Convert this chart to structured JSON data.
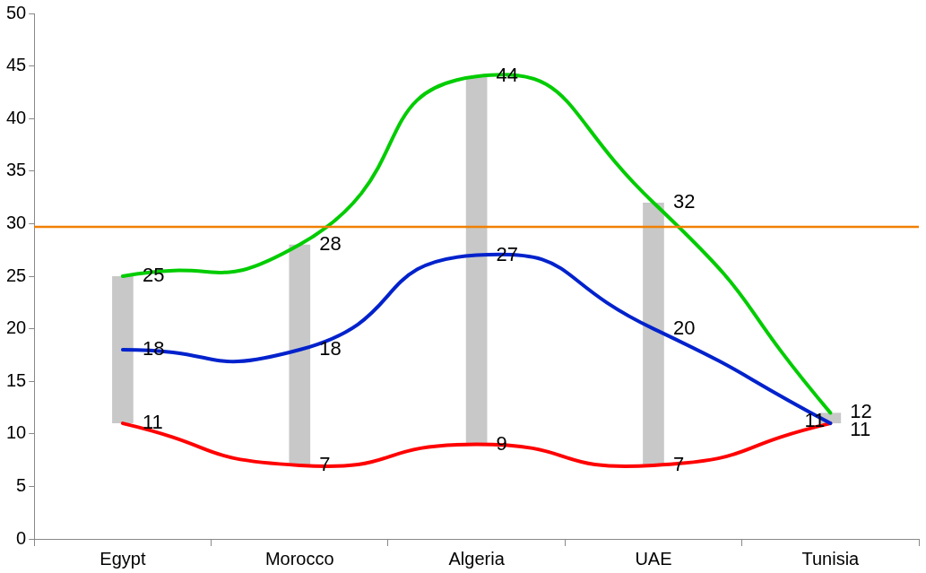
{
  "chart_data": {
    "type": "line",
    "categories": [
      "Egypt",
      "Morocco",
      "Algeria",
      "UAE",
      "Tunisia"
    ],
    "series": [
      {
        "type": "bar",
        "color": "#c8c8c8",
        "base": [
          11,
          7,
          9,
          7,
          11
        ],
        "values": [
          14,
          21,
          35,
          25,
          1
        ]
      },
      {
        "color": "#00cc00",
        "values": [
          25,
          28,
          44,
          32,
          12
        ],
        "value_labels": [
          "25",
          "28",
          "44",
          "32",
          "12"
        ]
      },
      {
        "color": "#0022cc",
        "values": [
          18,
          18,
          27,
          20,
          11
        ],
        "value_labels": [
          "18",
          "18",
          "27",
          "20",
          "11"
        ]
      },
      {
        "color": "#ff0000",
        "values": [
          11,
          7,
          9,
          7,
          11
        ],
        "value_labels": [
          "11",
          "7",
          "9",
          "7",
          "11"
        ]
      }
    ],
    "ylim": [
      0,
      50
    ],
    "yticks": [
      0,
      5,
      10,
      15,
      20,
      25,
      30,
      35,
      40,
      45,
      50
    ],
    "grid": false,
    "legend": false,
    "marker": "none",
    "line_style": "solid",
    "ref_lines": [
      {
        "axis": "y",
        "value": 29.7,
        "color": "#f07f00"
      }
    ]
  }
}
